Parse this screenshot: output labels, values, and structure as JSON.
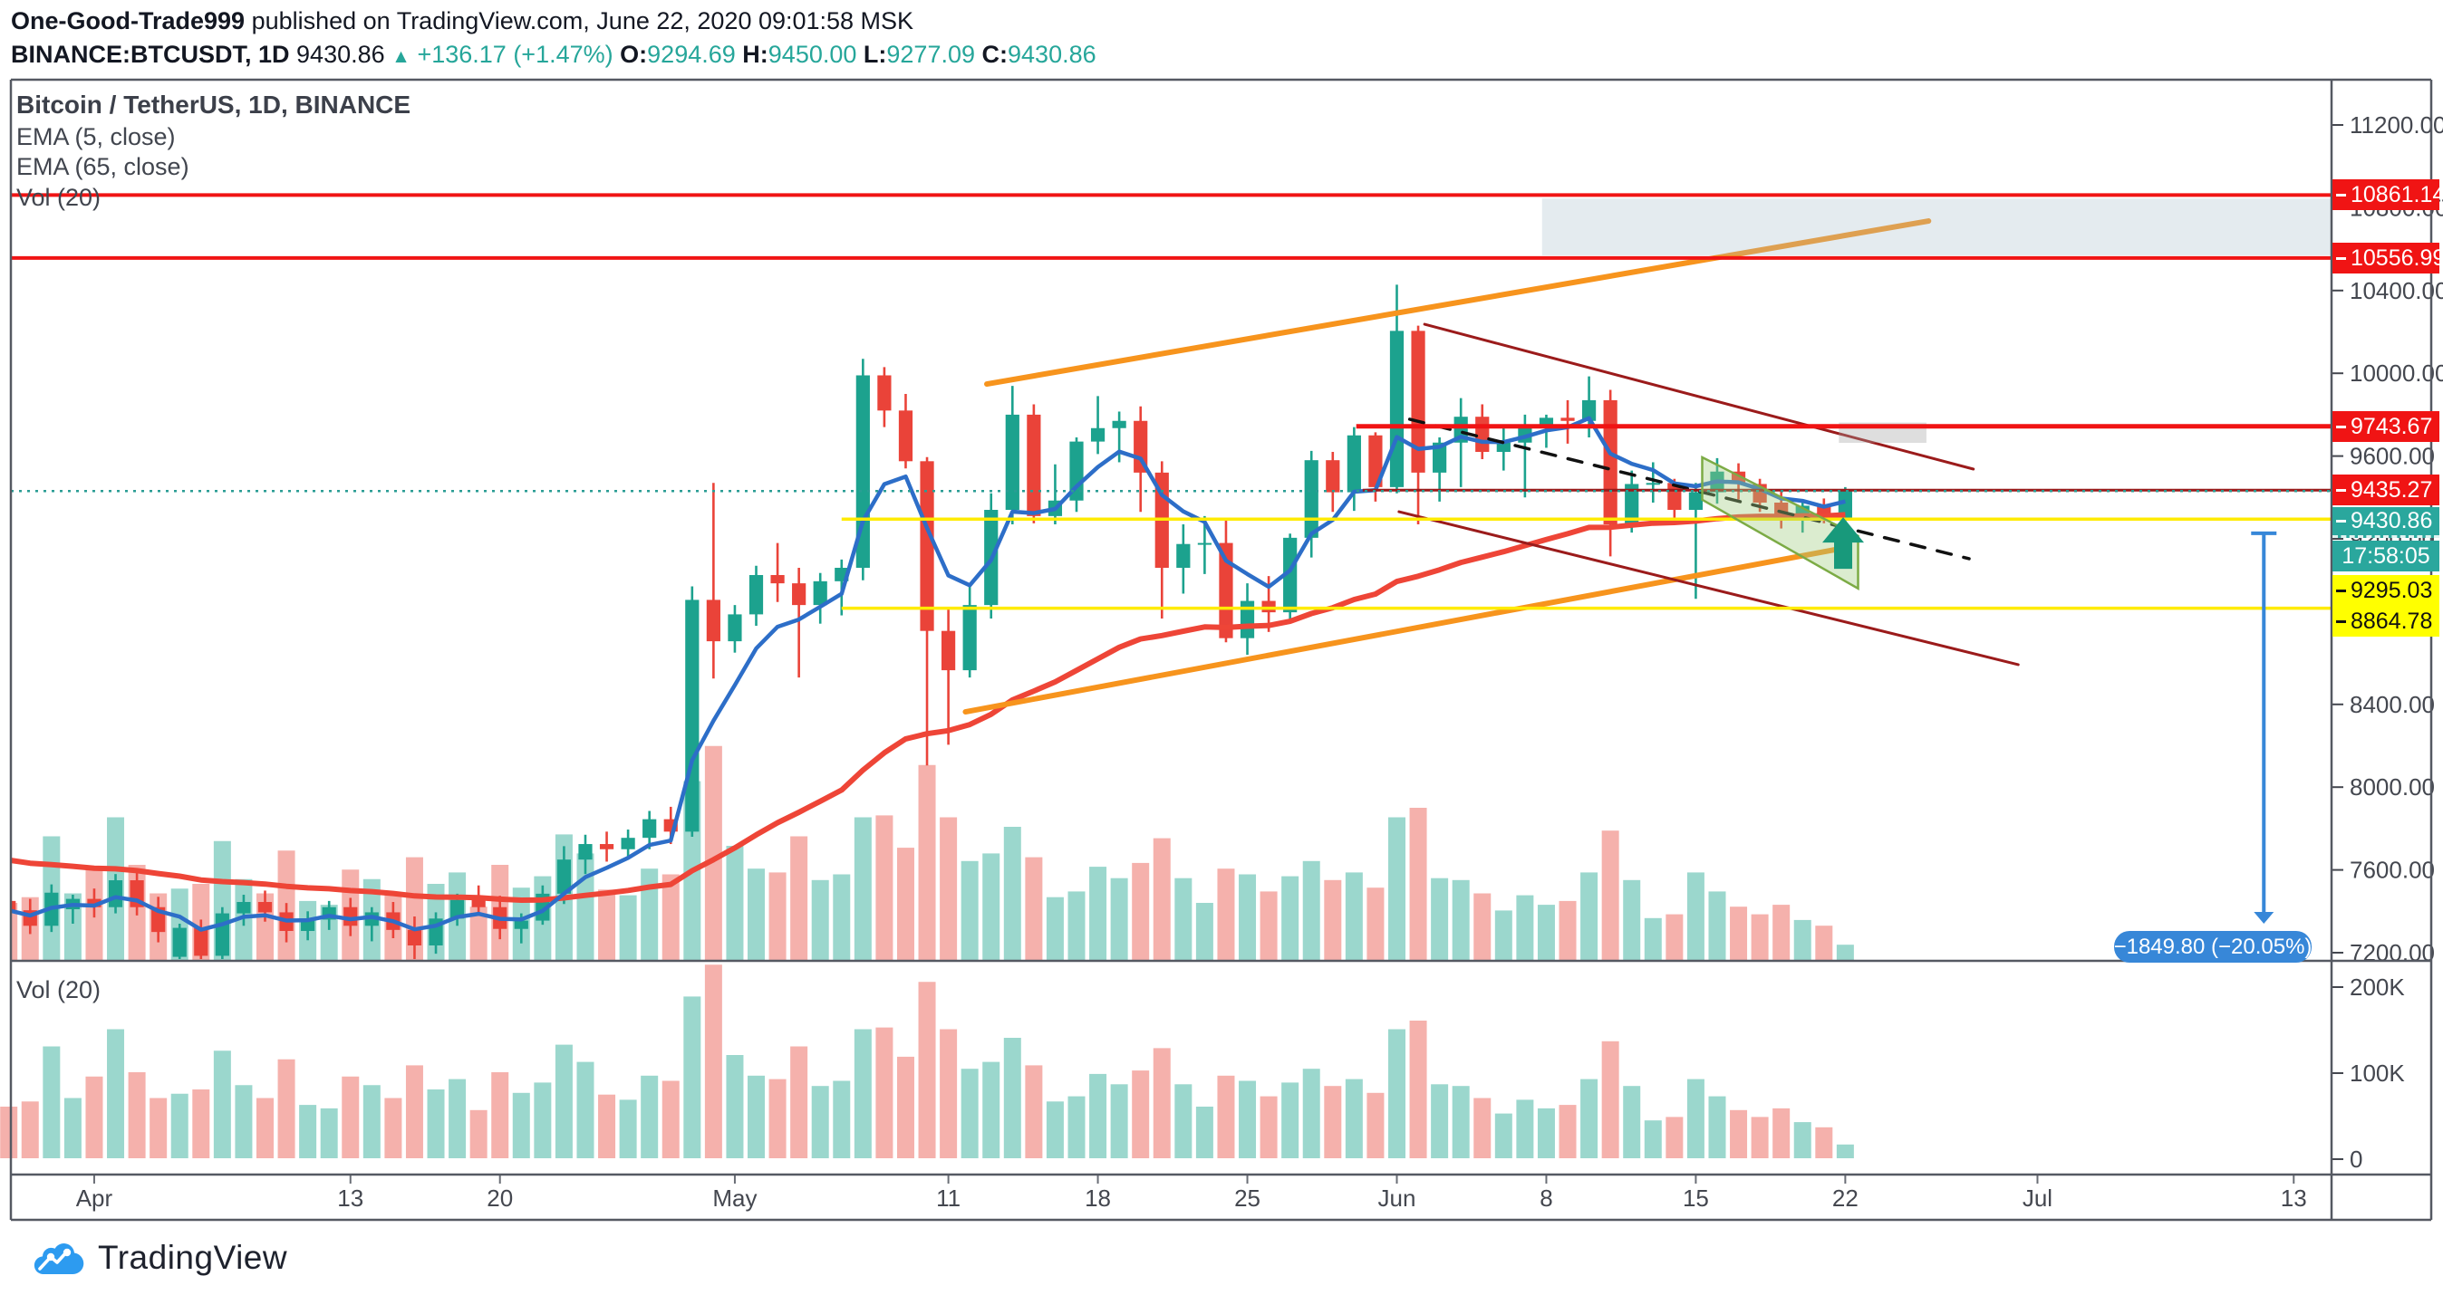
{
  "header": {
    "author": "One-Good-Trade999",
    "published_text": " published on TradingView.com, June 22, 2020 09:01:58 MSK",
    "symbol_interval": "BINANCE:BTCUSDT, 1D",
    "last_price": "9430.86",
    "up_arrow": "▲",
    "change": "+136.17 (+1.47%)",
    "o_label": "O:",
    "o_value": "9294.69",
    "h_label": "H:",
    "h_value": "9450.00",
    "l_label": "L:",
    "l_value": "9277.09",
    "c_label": "C:",
    "c_value": "9430.86"
  },
  "legend": {
    "title": "Bitcoin / TetherUS, 1D, BINANCE",
    "ema5": "EMA (5, close)",
    "ema65": "EMA (65, close)",
    "vol": "Vol (20)"
  },
  "volume_pane": {
    "legend": "Vol (20)"
  },
  "price_axis_labels": {
    "resistance1": "10861.14",
    "resistance2": "10556.99",
    "resistance3": "9743.67",
    "level4": "9435.27",
    "last": "9430.86",
    "countdown": "17:58:05",
    "yellow1": "9295.03",
    "yellow2": "8864.78"
  },
  "measure_label_text": "−1849.80 (−20.05%)",
  "logo_text": "TradingView",
  "colors": {
    "candle_up": "#1ca28e",
    "candle_down": "#ea4339",
    "vol_up": "#9bd7cd",
    "vol_down": "#f5b1ac",
    "ema5": "#2d6ec8",
    "ema65": "#ee4537",
    "level_red": "#f01414",
    "level_yellow": "#ffeb00",
    "maroon": "#9b1b1b",
    "orange": "#f7941d",
    "teal_dotted": "#2a9d94",
    "measure_blue": "#3787d8",
    "axis_text": "#44474f",
    "frame": "#555962",
    "box_fill": "rgba(164,188,202,0.30)",
    "small_box_fill": "rgba(160,160,160,0.35)",
    "channel_fill": "rgba(160,205,130,0.38)",
    "channel_stroke": "#7cab45",
    "arrow_green": "#18997b",
    "black_dashed": "#111111"
  },
  "chart_data": {
    "type": "candlestick",
    "symbol": "BINANCE:BTCUSDT",
    "interval": "1D",
    "title": "Bitcoin / TetherUS, 1D, BINANCE",
    "ylim": [
      7200,
      11200
    ],
    "y_ticks": [
      7200,
      7600,
      8000,
      8400,
      8800,
      9200,
      9600,
      10000,
      10400,
      10800,
      11200
    ],
    "vol_ticks": [
      {
        "v": 0,
        "label": "0"
      },
      {
        "v": 100,
        "label": "100K"
      },
      {
        "v": 200,
        "label": "200K"
      }
    ],
    "x_ticks": [
      {
        "label": "Apr",
        "bar": 4
      },
      {
        "label": "13",
        "bar": 16
      },
      {
        "label": "20",
        "bar": 23
      },
      {
        "label": "May",
        "bar": 34
      },
      {
        "label": "11",
        "bar": 44
      },
      {
        "label": "18",
        "bar": 51
      },
      {
        "label": "25",
        "bar": 58
      },
      {
        "label": "Jun",
        "bar": 65
      },
      {
        "label": "8",
        "bar": 72
      },
      {
        "label": "15",
        "bar": 79
      },
      {
        "label": "22",
        "bar": 86
      },
      {
        "label": "Jul",
        "bar": 95
      },
      {
        "label": "13",
        "bar": 107
      }
    ],
    "bars": [
      [
        "Mar 28",
        7450,
        7510,
        7350,
        7405,
        60
      ],
      [
        "Mar 29",
        7405,
        7460,
        7290,
        7330,
        66
      ],
      [
        "Mar 30",
        7330,
        7530,
        7300,
        7490,
        130
      ],
      [
        "Mar 31",
        7410,
        7480,
        7340,
        7460,
        70
      ],
      [
        "Apr 1",
        7460,
        7510,
        7370,
        7420,
        95
      ],
      [
        "Apr 2",
        7420,
        7580,
        7390,
        7550,
        150
      ],
      [
        "Apr 3",
        7550,
        7590,
        7380,
        7420,
        100
      ],
      [
        "Apr 4",
        7420,
        7470,
        7250,
        7300,
        70
      ],
      [
        "Apr 5",
        7180,
        7340,
        7160,
        7320,
        75
      ],
      [
        "Apr 6",
        7320,
        7360,
        7150,
        7185,
        80
      ],
      [
        "Apr 7",
        7185,
        7420,
        7160,
        7390,
        125
      ],
      [
        "Apr 8",
        7390,
        7480,
        7330,
        7445,
        85
      ],
      [
        "Apr 9",
        7445,
        7500,
        7350,
        7395,
        70
      ],
      [
        "Apr 10",
        7395,
        7440,
        7250,
        7305,
        115
      ],
      [
        "Apr 11",
        7305,
        7400,
        7260,
        7360,
        62
      ],
      [
        "Apr 12",
        7360,
        7450,
        7310,
        7420,
        58
      ],
      [
        "Apr 13",
        7420,
        7465,
        7280,
        7330,
        95
      ],
      [
        "Apr 14",
        7330,
        7420,
        7255,
        7395,
        85
      ],
      [
        "Apr 15",
        7395,
        7445,
        7270,
        7310,
        70
      ],
      [
        "Apr 16",
        7310,
        7375,
        7150,
        7235,
        108
      ],
      [
        "Apr 17",
        7235,
        7395,
        7195,
        7365,
        80
      ],
      [
        "Apr 18",
        7365,
        7485,
        7330,
        7455,
        92
      ],
      [
        "Apr 19",
        7455,
        7525,
        7380,
        7420,
        56
      ],
      [
        "Apr 20",
        7420,
        7475,
        7265,
        7315,
        100
      ],
      [
        "Apr 21",
        7315,
        7390,
        7245,
        7355,
        76
      ],
      [
        "Apr 22",
        7355,
        7525,
        7335,
        7485,
        88
      ],
      [
        "Apr 23",
        7485,
        7715,
        7435,
        7650,
        132
      ],
      [
        "Apr 24",
        7650,
        7770,
        7580,
        7725,
        112
      ],
      [
        "Apr 25",
        7725,
        7785,
        7640,
        7700,
        74
      ],
      [
        "Apr 26",
        7700,
        7795,
        7655,
        7755,
        68
      ],
      [
        "Apr 27",
        7755,
        7885,
        7700,
        7845,
        96
      ],
      [
        "Apr 28",
        7845,
        7905,
        7725,
        7785,
        90
      ],
      [
        "Apr 29",
        7785,
        8970,
        7760,
        8905,
        188
      ],
      [
        "Apr 30",
        8905,
        9470,
        8525,
        8705,
        225
      ],
      [
        "May 1",
        8705,
        8880,
        8650,
        8835,
        120
      ],
      [
        "May 2",
        8835,
        9070,
        8780,
        9025,
        96
      ],
      [
        "May 3",
        9025,
        9180,
        8895,
        8985,
        92
      ],
      [
        "May 4",
        8985,
        9060,
        8530,
        8880,
        130
      ],
      [
        "May 5",
        8880,
        9035,
        8790,
        8995,
        84
      ],
      [
        "May 6",
        8995,
        9100,
        8830,
        9060,
        90
      ],
      [
        "May 7",
        9060,
        10070,
        9000,
        9990,
        150
      ],
      [
        "May 8",
        9990,
        10030,
        9740,
        9820,
        152
      ],
      [
        "May 9",
        9820,
        9900,
        9540,
        9575,
        118
      ],
      [
        "May 10",
        9575,
        9595,
        8105,
        8755,
        205
      ],
      [
        "May 11",
        8755,
        8870,
        8205,
        8565,
        150
      ],
      [
        "May 12",
        8565,
        8985,
        8530,
        8880,
        104
      ],
      [
        "May 13",
        8880,
        9420,
        8815,
        9340,
        112
      ],
      [
        "May 14",
        9340,
        9939,
        9270,
        9800,
        140
      ],
      [
        "May 15",
        9800,
        9850,
        9275,
        9310,
        108
      ],
      [
        "May 16",
        9310,
        9560,
        9270,
        9385,
        66
      ],
      [
        "May 17",
        9385,
        9690,
        9330,
        9670,
        72
      ],
      [
        "May 18",
        9670,
        9890,
        9610,
        9735,
        98
      ],
      [
        "May 19",
        9735,
        9815,
        9570,
        9770,
        86
      ],
      [
        "May 20",
        9770,
        9840,
        9330,
        9520,
        102
      ],
      [
        "May 21",
        9520,
        9575,
        8815,
        9060,
        128
      ],
      [
        "May 22",
        9060,
        9270,
        8935,
        9175,
        86
      ],
      [
        "May 23",
        9175,
        9310,
        9030,
        9180,
        60
      ],
      [
        "May 24",
        9180,
        9300,
        8700,
        8720,
        96
      ],
      [
        "May 25",
        8720,
        8985,
        8640,
        8900,
        90
      ],
      [
        "May 26",
        8900,
        9020,
        8750,
        8845,
        72
      ],
      [
        "May 27",
        8845,
        9225,
        8810,
        9205,
        88
      ],
      [
        "May 28",
        9205,
        9625,
        9110,
        9580,
        104
      ],
      [
        "May 29",
        9580,
        9620,
        9330,
        9425,
        84
      ],
      [
        "May 30",
        9425,
        9740,
        9335,
        9700,
        92
      ],
      [
        "May 31",
        9700,
        9715,
        9380,
        9450,
        76
      ],
      [
        "Jun 1",
        9450,
        10428,
        9420,
        10205,
        150
      ],
      [
        "Jun 2",
        10205,
        10230,
        9270,
        9520,
        160
      ],
      [
        "Jun 3",
        9520,
        9690,
        9380,
        9665,
        86
      ],
      [
        "Jun 4",
        9665,
        9880,
        9450,
        9790,
        84
      ],
      [
        "Jun 5",
        9790,
        9850,
        9585,
        9620,
        70
      ],
      [
        "Jun 6",
        9620,
        9740,
        9530,
        9665,
        52
      ],
      [
        "Jun 7",
        9665,
        9800,
        9400,
        9745,
        68
      ],
      [
        "Jun 8",
        9745,
        9800,
        9640,
        9785,
        58
      ],
      [
        "Jun 9",
        9785,
        9870,
        9660,
        9770,
        62
      ],
      [
        "Jun 10",
        9770,
        9985,
        9690,
        9870,
        92
      ],
      [
        "Jun 11",
        9870,
        9920,
        9115,
        9270,
        136
      ],
      [
        "Jun 12",
        9270,
        9530,
        9230,
        9465,
        84
      ],
      [
        "Jun 13",
        9465,
        9570,
        9375,
        9470,
        44
      ],
      [
        "Jun 14",
        9470,
        9490,
        9300,
        9340,
        48
      ],
      [
        "Jun 15",
        9340,
        9470,
        8910,
        9425,
        92
      ],
      [
        "Jun 16",
        9425,
        9590,
        9370,
        9525,
        72
      ],
      [
        "Jun 17",
        9525,
        9565,
        9390,
        9465,
        56
      ],
      [
        "Jun 18",
        9465,
        9490,
        9330,
        9375,
        48
      ],
      [
        "Jun 19",
        9375,
        9430,
        9250,
        9305,
        58
      ],
      [
        "Jun 20",
        9305,
        9390,
        9230,
        9360,
        42
      ],
      [
        "Jun 21",
        9360,
        9395,
        9275,
        9300,
        36
      ],
      [
        "Jun 22",
        9294.69,
        9450,
        9277.09,
        9430.86,
        16
      ]
    ],
    "indicators": {
      "ema5": {
        "k": 0.3333,
        "seed": 7405,
        "width": 4.5
      },
      "ema65": {
        "k": 0.048,
        "seed": 7660,
        "width": 6
      }
    },
    "levels": [
      {
        "price": 10861.14,
        "color": "level_red",
        "width": 4,
        "from_bar": null
      },
      {
        "price": 10556.99,
        "color": "level_red",
        "width": 4,
        "from_bar": null
      },
      {
        "price": 9743.67,
        "color": "level_red",
        "width": 5,
        "from_bar": 63.1
      },
      {
        "price": 9435.27,
        "color": "maroon",
        "width": 3,
        "from_bar": 63.4
      },
      {
        "price": 9295.03,
        "color": "level_yellow",
        "width": 3.5,
        "from_bar": 39
      },
      {
        "price": 8864.78,
        "color": "level_yellow",
        "width": 3.5,
        "from_bar": 39
      }
    ],
    "price_line": {
      "price": 9430.86
    },
    "trendlines": [
      {
        "name": "rising-channel-upper",
        "t1": 45.8,
        "p1": 9948,
        "t2": 89.9,
        "p2": 10736,
        "color": "orange",
        "width": 6
      },
      {
        "name": "rising-channel-lower",
        "t1": 44.8,
        "p1": 8364,
        "t2": 85.5,
        "p2": 9147,
        "color": "orange",
        "width": 6
      },
      {
        "name": "wedge-upper",
        "t1": 66.3,
        "p1": 10237,
        "t2": 92.0,
        "p2": 9537,
        "color": "maroon",
        "width": 3
      },
      {
        "name": "wedge-lower",
        "t1": 65.1,
        "p1": 9331,
        "t2": 94.1,
        "p2": 8592,
        "color": "maroon",
        "width": 3
      },
      {
        "name": "projection-dashed",
        "t1": 65.6,
        "p1": 9778,
        "t2": 91.8,
        "p2": 9104,
        "color": "black_dashed",
        "width": 3.5,
        "dash": "16 14"
      }
    ],
    "boxes": [
      {
        "name": "supply-zone",
        "t1": 71.8,
        "t2": "right",
        "p1": 10845,
        "p2": 10570,
        "fill": "box_fill"
      },
      {
        "name": "small-zone",
        "t1": 85.7,
        "t2": 89.8,
        "p1": 9762,
        "p2": 9664,
        "fill": "small_box_fill"
      }
    ],
    "channel": {
      "points": [
        [
          79.3,
          9594
        ],
        [
          86.6,
          9214
        ],
        [
          86.6,
          8960
        ],
        [
          79.3,
          9389
        ]
      ]
    },
    "arrow_marker": {
      "t": 85.9,
      "p": 9173
    },
    "measure": {
      "t": 105.6,
      "p_top": 9227,
      "p_bottom": 7340,
      "value": -1849.8,
      "percent": -20.05
    }
  }
}
